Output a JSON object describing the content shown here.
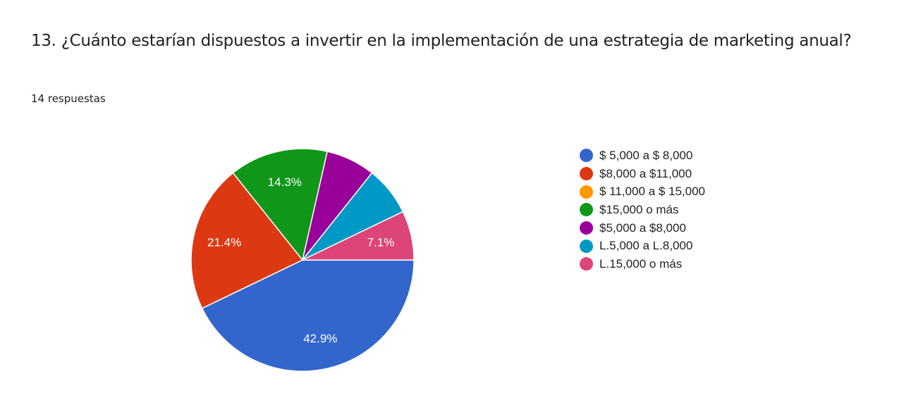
{
  "header": {
    "title": "13. ¿Cuánto estarían dispuestos a invertir en la implementación de una estrategia de marketing anual?",
    "responses": "14 respuestas"
  },
  "chart_data": {
    "type": "pie",
    "title": "13. ¿Cuánto estarían dispuestos a invertir en la implementación de una estrategia de marketing anual?",
    "subtitle": "14 respuestas",
    "total": 14,
    "categories": [
      "$ 5,000 a $ 8,000",
      "$8,000 a $11,000",
      "$ 11,000 a $ 15,000",
      "$15,000 o más",
      "$5,000 a $8,000",
      "L.5,000 a L.8,000",
      "L.15,000 o más"
    ],
    "values": [
      6,
      3,
      0,
      2,
      1,
      1,
      1
    ],
    "percentages": [
      42.9,
      21.4,
      0,
      14.3,
      7.1,
      7.1,
      7.1
    ],
    "slice_labels": [
      "42.9%",
      "21.4%",
      "",
      "14.3%",
      "",
      "",
      "7.1%"
    ],
    "colors": [
      "#3366cc",
      "#dc3912",
      "#ff9900",
      "#109618",
      "#990099",
      "#0099c6",
      "#dd4477"
    ],
    "legend_position": "right"
  },
  "legend": {
    "items": [
      {
        "label": "$ 5,000 a $ 8,000",
        "color": "#3366cc"
      },
      {
        "label": "$8,000 a $11,000",
        "color": "#dc3912"
      },
      {
        "label": "$ 11,000 a $ 15,000",
        "color": "#ff9900"
      },
      {
        "label": "$15,000 o más",
        "color": "#109618"
      },
      {
        "label": "$5,000 a $8,000",
        "color": "#990099"
      },
      {
        "label": "L.5,000 a L.8,000",
        "color": "#0099c6"
      },
      {
        "label": "L.15,000 o más",
        "color": "#dd4477"
      }
    ]
  }
}
